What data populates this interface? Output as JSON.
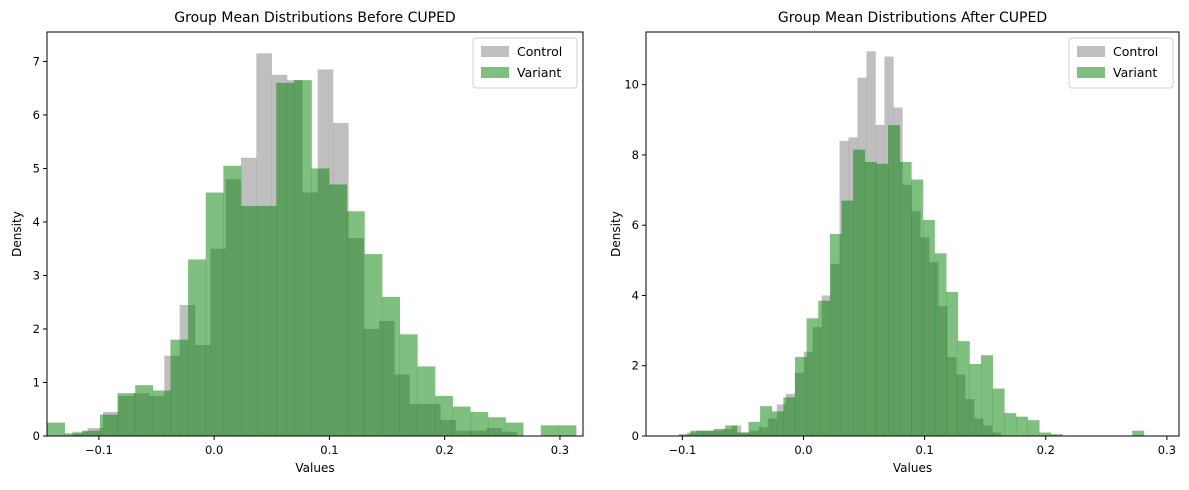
{
  "chart_data": [
    {
      "type": "bar",
      "title": "Group Mean Distributions Before CUPED",
      "xlabel": "Values",
      "ylabel": "Density",
      "xlim": [
        -0.145,
        0.32
      ],
      "ylim": [
        0,
        7.55
      ],
      "xticks": [
        -0.1,
        0.0,
        0.1,
        0.2,
        0.3
      ],
      "xtick_labels": [
        "−0.1",
        "0.0",
        "0.1",
        "0.2",
        "0.3"
      ],
      "yticks": [
        0,
        1,
        2,
        3,
        4,
        5,
        6,
        7
      ],
      "ytick_labels": [
        "0",
        "1",
        "2",
        "3",
        "4",
        "5",
        "6",
        "7"
      ],
      "legend_position": "top-right",
      "series": [
        {
          "name": "Control",
          "color": "#808080",
          "opacity": 0.5,
          "bin_width": 0.0133,
          "bins": [
            {
              "x0": -0.123,
              "y": 0.08
            },
            {
              "x0": -0.1097,
              "y": 0.15
            },
            {
              "x0": -0.0964,
              "y": 0.45
            },
            {
              "x0": -0.0831,
              "y": 0.75
            },
            {
              "x0": -0.0698,
              "y": 0.8
            },
            {
              "x0": -0.0565,
              "y": 0.75
            },
            {
              "x0": -0.0432,
              "y": 1.5
            },
            {
              "x0": -0.0299,
              "y": 2.45
            },
            {
              "x0": -0.0166,
              "y": 1.7
            },
            {
              "x0": -0.0033,
              "y": 3.5
            },
            {
              "x0": 0.01,
              "y": 4.8
            },
            {
              "x0": 0.0233,
              "y": 5.2
            },
            {
              "x0": 0.0366,
              "y": 7.15
            },
            {
              "x0": 0.0499,
              "y": 6.75
            },
            {
              "x0": 0.0632,
              "y": 6.65
            },
            {
              "x0": 0.0765,
              "y": 4.55
            },
            {
              "x0": 0.0898,
              "y": 6.85
            },
            {
              "x0": 0.1031,
              "y": 5.85
            },
            {
              "x0": 0.1164,
              "y": 3.7
            },
            {
              "x0": 0.1297,
              "y": 2.0
            },
            {
              "x0": 0.143,
              "y": 2.15
            },
            {
              "x0": 0.1563,
              "y": 1.15
            },
            {
              "x0": 0.1696,
              "y": 0.6
            },
            {
              "x0": 0.1829,
              "y": 0.6
            },
            {
              "x0": 0.1962,
              "y": 0.3
            },
            {
              "x0": 0.2095,
              "y": 0.1
            },
            {
              "x0": 0.2228,
              "y": 0.1
            },
            {
              "x0": 0.2361,
              "y": 0.15
            },
            {
              "x0": 0.2494,
              "y": 0.08
            }
          ]
        },
        {
          "name": "Variant",
          "color": "#008000",
          "opacity": 0.5,
          "bin_width": 0.0153,
          "bins": [
            {
              "x0": -0.145,
              "y": 0.25
            },
            {
              "x0": -0.1297,
              "y": 0.05
            },
            {
              "x0": -0.1144,
              "y": 0.1
            },
            {
              "x0": -0.0991,
              "y": 0.4
            },
            {
              "x0": -0.0838,
              "y": 0.8
            },
            {
              "x0": -0.0685,
              "y": 0.95
            },
            {
              "x0": -0.0532,
              "y": 0.85
            },
            {
              "x0": -0.0379,
              "y": 1.8
            },
            {
              "x0": -0.0226,
              "y": 3.3
            },
            {
              "x0": -0.0073,
              "y": 4.55
            },
            {
              "x0": 0.008,
              "y": 5.05
            },
            {
              "x0": 0.0233,
              "y": 4.3
            },
            {
              "x0": 0.0386,
              "y": 4.3
            },
            {
              "x0": 0.0539,
              "y": 6.6
            },
            {
              "x0": 0.0692,
              "y": 6.65
            },
            {
              "x0": 0.0845,
              "y": 5.0
            },
            {
              "x0": 0.0998,
              "y": 4.7
            },
            {
              "x0": 0.1151,
              "y": 4.2
            },
            {
              "x0": 0.1304,
              "y": 3.4
            },
            {
              "x0": 0.1457,
              "y": 2.6
            },
            {
              "x0": 0.161,
              "y": 1.9
            },
            {
              "x0": 0.1763,
              "y": 1.3
            },
            {
              "x0": 0.1916,
              "y": 0.75
            },
            {
              "x0": 0.2069,
              "y": 0.55
            },
            {
              "x0": 0.2222,
              "y": 0.45
            },
            {
              "x0": 0.2375,
              "y": 0.35
            },
            {
              "x0": 0.2528,
              "y": 0.25
            },
            {
              "x0": 0.2681,
              "y": 0.0
            },
            {
              "x0": 0.2834,
              "y": 0.2
            },
            {
              "x0": 0.2987,
              "y": 0.2
            }
          ]
        }
      ]
    },
    {
      "type": "bar",
      "title": "Group Mean Distributions After CUPED",
      "xlabel": "Values",
      "ylabel": "Density",
      "xlim": [
        -0.13,
        0.31
      ],
      "ylim": [
        0,
        11.5
      ],
      "xticks": [
        -0.1,
        0.0,
        0.1,
        0.2,
        0.3
      ],
      "xtick_labels": [
        "−0.1",
        "0.0",
        "0.1",
        "0.2",
        "0.3"
      ],
      "yticks": [
        0,
        2,
        4,
        6,
        8,
        10
      ],
      "ytick_labels": [
        "0",
        "2",
        "4",
        "6",
        "8",
        "10"
      ],
      "legend_position": "top-right",
      "series": [
        {
          "name": "Control",
          "color": "#808080",
          "opacity": 0.5,
          "bin_width": 0.0074,
          "bins": [
            {
              "x0": -0.096,
              "y": 0.1
            },
            {
              "x0": -0.0886,
              "y": 0.15
            },
            {
              "x0": -0.0812,
              "y": 0.15
            },
            {
              "x0": -0.0738,
              "y": 0.15
            },
            {
              "x0": -0.0664,
              "y": 0.2
            },
            {
              "x0": -0.059,
              "y": 0.3
            },
            {
              "x0": -0.0516,
              "y": 0.1
            },
            {
              "x0": -0.0442,
              "y": 0.15
            },
            {
              "x0": -0.0368,
              "y": 0.25
            },
            {
              "x0": -0.0294,
              "y": 0.5
            },
            {
              "x0": -0.022,
              "y": 0.9
            },
            {
              "x0": -0.0146,
              "y": 1.2
            },
            {
              "x0": -0.0072,
              "y": 1.8
            },
            {
              "x0": 0.0002,
              "y": 2.4
            },
            {
              "x0": 0.0076,
              "y": 3.1
            },
            {
              "x0": 0.015,
              "y": 4.0
            },
            {
              "x0": 0.0224,
              "y": 4.9
            },
            {
              "x0": 0.0298,
              "y": 8.4
            },
            {
              "x0": 0.0372,
              "y": 8.5
            },
            {
              "x0": 0.0446,
              "y": 10.2
            },
            {
              "x0": 0.052,
              "y": 10.95
            },
            {
              "x0": 0.0594,
              "y": 8.85
            },
            {
              "x0": 0.0668,
              "y": 10.8
            },
            {
              "x0": 0.0742,
              "y": 9.35
            },
            {
              "x0": 0.0816,
              "y": 7.15
            },
            {
              "x0": 0.089,
              "y": 6.4
            },
            {
              "x0": 0.0964,
              "y": 5.65
            },
            {
              "x0": 0.1038,
              "y": 4.95
            },
            {
              "x0": 0.1112,
              "y": 3.7
            },
            {
              "x0": 0.1186,
              "y": 2.25
            },
            {
              "x0": 0.126,
              "y": 1.75
            },
            {
              "x0": 0.1334,
              "y": 1.05
            },
            {
              "x0": 0.1408,
              "y": 0.5
            },
            {
              "x0": 0.1482,
              "y": 0.3
            },
            {
              "x0": 0.1556,
              "y": 0.1
            }
          ]
        },
        {
          "name": "Variant",
          "color": "#008000",
          "opacity": 0.5,
          "bin_width": 0.0096,
          "bins": [
            {
              "x0": -0.103,
              "y": 0.05
            },
            {
              "x0": -0.0934,
              "y": 0.15
            },
            {
              "x0": -0.0838,
              "y": 0.15
            },
            {
              "x0": -0.0742,
              "y": 0.2
            },
            {
              "x0": -0.0646,
              "y": 0.3
            },
            {
              "x0": -0.055,
              "y": 0.1
            },
            {
              "x0": -0.0454,
              "y": 0.4
            },
            {
              "x0": -0.0358,
              "y": 0.85
            },
            {
              "x0": -0.0262,
              "y": 0.7
            },
            {
              "x0": -0.0166,
              "y": 1.1
            },
            {
              "x0": -0.007,
              "y": 2.25
            },
            {
              "x0": 0.0026,
              "y": 3.35
            },
            {
              "x0": 0.0122,
              "y": 3.85
            },
            {
              "x0": 0.0218,
              "y": 5.75
            },
            {
              "x0": 0.0314,
              "y": 6.7
            },
            {
              "x0": 0.041,
              "y": 8.15
            },
            {
              "x0": 0.0506,
              "y": 7.8
            },
            {
              "x0": 0.0602,
              "y": 7.75
            },
            {
              "x0": 0.0698,
              "y": 8.85
            },
            {
              "x0": 0.0794,
              "y": 7.8
            },
            {
              "x0": 0.089,
              "y": 7.3
            },
            {
              "x0": 0.0986,
              "y": 6.15
            },
            {
              "x0": 0.1082,
              "y": 5.2
            },
            {
              "x0": 0.1178,
              "y": 4.1
            },
            {
              "x0": 0.1274,
              "y": 2.7
            },
            {
              "x0": 0.137,
              "y": 2.05
            },
            {
              "x0": 0.1466,
              "y": 2.3
            },
            {
              "x0": 0.1562,
              "y": 1.35
            },
            {
              "x0": 0.1658,
              "y": 0.65
            },
            {
              "x0": 0.1754,
              "y": 0.55
            },
            {
              "x0": 0.185,
              "y": 0.45
            },
            {
              "x0": 0.1946,
              "y": 0.1
            },
            {
              "x0": 0.2042,
              "y": 0.05
            },
            {
              "x0": 0.2138,
              "y": 0.0
            },
            {
              "x0": 0.2234,
              "y": 0.0
            },
            {
              "x0": 0.233,
              "y": 0.0
            },
            {
              "x0": 0.2426,
              "y": 0.0
            },
            {
              "x0": 0.2522,
              "y": 0.0
            },
            {
              "x0": 0.2618,
              "y": 0.0
            },
            {
              "x0": 0.2714,
              "y": 0.15
            }
          ]
        }
      ]
    }
  ]
}
